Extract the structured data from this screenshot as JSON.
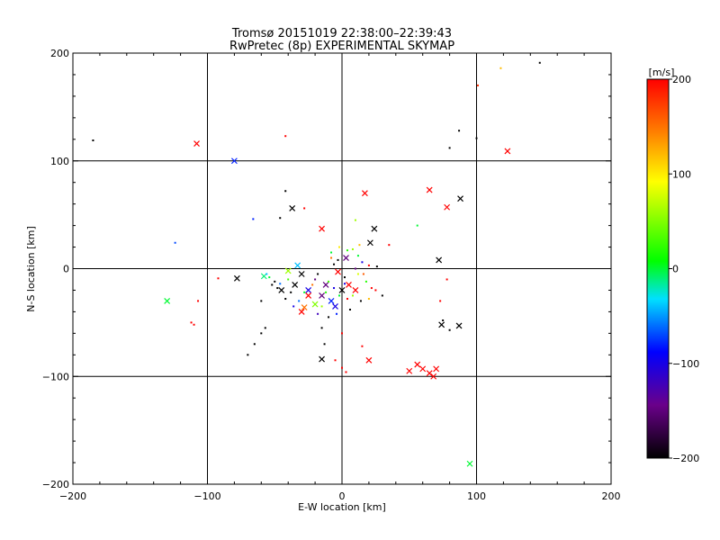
{
  "chart_data": {
    "type": "scatter",
    "title": "Tromsø 20151019 22:38:00–22:39:43",
    "subtitle": "RwPretec (8p) EXPERIMENTAL SKYMAP",
    "xlabel": "E-W location [km]",
    "ylabel": "N-S location [km]",
    "xlim": [
      -200,
      200
    ],
    "ylim": [
      -200,
      200
    ],
    "grid": true,
    "x_ticks": [
      -200,
      -100,
      0,
      100,
      200
    ],
    "y_ticks": [
      -200,
      -100,
      0,
      100,
      200
    ],
    "x_tick_labels": [
      "−200",
      "−100",
      "0",
      "100",
      "200"
    ],
    "y_tick_labels": [
      "−200",
      "−100",
      "0",
      "100",
      "200"
    ],
    "colorbar": {
      "label": "[m/s]",
      "range": [
        -200,
        200
      ],
      "ticks": [
        -200,
        -100,
        0,
        100,
        200
      ],
      "tick_labels": [
        "−200",
        "−100",
        "0",
        "100",
        "200"
      ]
    },
    "colors": {
      "axis": "#000000",
      "grid": "#000000",
      "scale": [
        "#000000",
        "#6a008a",
        "#0000ff",
        "#00e0ff",
        "#00ff00",
        "#ffff00",
        "#ff8000",
        "#ff0000"
      ]
    },
    "points_cross": [
      [
        -108,
        116,
        200
      ],
      [
        -80,
        100,
        -80
      ],
      [
        -37,
        56,
        -200
      ],
      [
        17,
        70,
        200
      ],
      [
        65,
        73,
        200
      ],
      [
        88,
        65,
        -200
      ],
      [
        78,
        57,
        200
      ],
      [
        24,
        37,
        -200
      ],
      [
        -15,
        37,
        200
      ],
      [
        21,
        24,
        -200
      ],
      [
        72,
        8,
        -200
      ],
      [
        -33,
        3,
        -40
      ],
      [
        -40,
        -2,
        60
      ],
      [
        -58,
        -7,
        -10
      ],
      [
        -78,
        -9,
        -200
      ],
      [
        -130,
        -30,
        0
      ],
      [
        -30,
        -5,
        -200
      ],
      [
        -35,
        -15,
        -200
      ],
      [
        -25,
        -20,
        -100
      ],
      [
        -15,
        -25,
        -150
      ],
      [
        -8,
        -30,
        -80
      ],
      [
        -20,
        -33,
        50
      ],
      [
        -30,
        -40,
        200
      ],
      [
        -5,
        -35,
        -100
      ],
      [
        0,
        -20,
        -200
      ],
      [
        5,
        -15,
        200
      ],
      [
        10,
        -20,
        200
      ],
      [
        -25,
        -25,
        200
      ],
      [
        -3,
        -3,
        200
      ],
      [
        -15,
        -84,
        -200
      ],
      [
        74,
        -52,
        -200
      ],
      [
        87,
        -53,
        -200
      ],
      [
        20,
        -85,
        200
      ],
      [
        50,
        -95,
        200
      ],
      [
        56,
        -89,
        200
      ],
      [
        60,
        -93,
        200
      ],
      [
        65,
        -97,
        200
      ],
      [
        70,
        -93,
        200
      ],
      [
        68,
        -100,
        200
      ],
      [
        95,
        -181,
        0
      ],
      [
        123,
        109,
        200
      ],
      [
        -28,
        -36,
        150
      ],
      [
        -45,
        -20,
        -200
      ],
      [
        -12,
        -15,
        -150
      ],
      [
        3,
        10,
        -150
      ]
    ],
    "points_dot": [
      [
        -185,
        119,
        -200
      ],
      [
        -42,
        123,
        200
      ],
      [
        147,
        191,
        -200
      ],
      [
        118,
        186,
        120
      ],
      [
        101,
        170,
        180
      ],
      [
        87,
        128,
        -200
      ],
      [
        100,
        121,
        -200
      ],
      [
        80,
        112,
        -200
      ],
      [
        -42,
        72,
        -200
      ],
      [
        -46,
        47,
        -200
      ],
      [
        -28,
        56,
        200
      ],
      [
        -124,
        24,
        -70
      ],
      [
        -66,
        46,
        -80
      ],
      [
        10,
        45,
        60
      ],
      [
        -92,
        -9,
        200
      ],
      [
        -107,
        -30,
        200
      ],
      [
        -112,
        -50,
        200
      ],
      [
        -110,
        -52,
        200
      ],
      [
        -60,
        -30,
        -200
      ],
      [
        -57,
        -55,
        -200
      ],
      [
        -60,
        -60,
        -200
      ],
      [
        -65,
        -70,
        -200
      ],
      [
        -70,
        -80,
        -200
      ],
      [
        -15,
        -55,
        -200
      ],
      [
        -13,
        -70,
        -200
      ],
      [
        -5,
        -85,
        200
      ],
      [
        0,
        -92,
        200
      ],
      [
        3,
        -96,
        200
      ],
      [
        15,
        -72,
        200
      ],
      [
        0,
        -60,
        200
      ],
      [
        75,
        -48,
        -200
      ],
      [
        80,
        -57,
        -200
      ],
      [
        78,
        -10,
        200
      ],
      [
        73,
        -30,
        200
      ],
      [
        35,
        22,
        200
      ],
      [
        13,
        22,
        120
      ],
      [
        56,
        40,
        0
      ],
      [
        -8,
        15,
        0
      ],
      [
        4,
        17,
        20
      ],
      [
        -2,
        20,
        100
      ],
      [
        8,
        18,
        60
      ],
      [
        12,
        12,
        0
      ],
      [
        15,
        6,
        -100
      ],
      [
        20,
        3,
        200
      ],
      [
        -20,
        -10,
        -150
      ],
      [
        -50,
        -12,
        -200
      ],
      [
        -52,
        -15,
        -200
      ],
      [
        -48,
        -18,
        -200
      ],
      [
        -40,
        -10,
        30
      ],
      [
        -46,
        -14,
        -60
      ],
      [
        -38,
        -22,
        -200
      ],
      [
        -18,
        -5,
        -200
      ],
      [
        -10,
        -12,
        30
      ],
      [
        -6,
        -18,
        -100
      ],
      [
        -12,
        -22,
        20
      ],
      [
        -22,
        -15,
        150
      ],
      [
        -15,
        -35,
        60
      ],
      [
        -10,
        -45,
        -200
      ],
      [
        -18,
        -42,
        -120
      ],
      [
        -4,
        -42,
        -80
      ],
      [
        4,
        -28,
        200
      ],
      [
        6,
        -38,
        -200
      ],
      [
        2,
        -8,
        -200
      ],
      [
        12,
        -5,
        80
      ],
      [
        18,
        -12,
        20
      ],
      [
        22,
        -18,
        200
      ],
      [
        26,
        2,
        -200
      ],
      [
        30,
        -25,
        -200
      ],
      [
        -2,
        -25,
        0
      ],
      [
        2,
        -14,
        -100
      ],
      [
        -6,
        4,
        -200
      ],
      [
        -3,
        8,
        -200
      ],
      [
        10,
        0,
        -150
      ],
      [
        16,
        -5,
        160
      ],
      [
        -28,
        -22,
        0
      ],
      [
        -32,
        -30,
        -60
      ],
      [
        -56,
        -5,
        -40
      ],
      [
        -54,
        -8,
        0
      ],
      [
        -42,
        -28,
        -200
      ],
      [
        -36,
        -35,
        -100
      ],
      [
        8,
        -25,
        60
      ],
      [
        14,
        -30,
        -200
      ],
      [
        20,
        -28,
        120
      ],
      [
        25,
        -20,
        200
      ],
      [
        -8,
        10,
        150
      ]
    ]
  }
}
